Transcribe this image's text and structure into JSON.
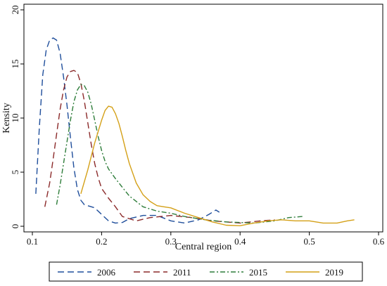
{
  "chart_data": {
    "type": "line",
    "xlabel": "Central region",
    "ylabel": "Kensity",
    "xlim": [
      0.1,
      0.6
    ],
    "ylim": [
      0,
      20
    ],
    "xticks": [
      0.1,
      0.2,
      0.3,
      0.4,
      0.5,
      0.6
    ],
    "xtick_labels": [
      "0.1",
      "0.2",
      "0.3",
      "0.4",
      "0.5",
      "0.6"
    ],
    "yticks": [
      0,
      5,
      10,
      15,
      20
    ],
    "ytick_labels": [
      "0",
      "5",
      "10",
      "15",
      "20"
    ],
    "grid": false,
    "legend": "bottom",
    "series": [
      {
        "name": "2006",
        "color": "#1f4e9b",
        "dash": "long-dash",
        "x": [
          0.105,
          0.11,
          0.115,
          0.12,
          0.125,
          0.13,
          0.135,
          0.14,
          0.145,
          0.15,
          0.155,
          0.16,
          0.165,
          0.17,
          0.175,
          0.18,
          0.19,
          0.2,
          0.21,
          0.22,
          0.23,
          0.24,
          0.26,
          0.28,
          0.3,
          0.32,
          0.34,
          0.355,
          0.365,
          0.37
        ],
        "y": [
          3.0,
          9.0,
          14.0,
          16.3,
          17.2,
          17.4,
          17.2,
          16.0,
          13.8,
          11.2,
          8.2,
          5.4,
          3.4,
          2.4,
          2.0,
          1.9,
          1.7,
          1.1,
          0.5,
          0.3,
          0.35,
          0.7,
          1.0,
          1.0,
          0.5,
          0.3,
          0.6,
          1.1,
          1.5,
          1.3
        ]
      },
      {
        "name": "2011",
        "color": "#8b2a2a",
        "dash": "long-dash",
        "x": [
          0.118,
          0.125,
          0.13,
          0.135,
          0.14,
          0.145,
          0.15,
          0.155,
          0.16,
          0.165,
          0.17,
          0.175,
          0.18,
          0.185,
          0.19,
          0.195,
          0.2,
          0.21,
          0.22,
          0.23,
          0.25,
          0.27,
          0.3,
          0.33,
          0.36,
          0.4,
          0.43,
          0.45
        ],
        "y": [
          1.8,
          4.0,
          6.2,
          8.5,
          10.8,
          12.6,
          13.8,
          14.3,
          14.4,
          14.2,
          13.2,
          11.6,
          9.6,
          7.6,
          5.8,
          4.5,
          3.5,
          2.6,
          1.8,
          0.9,
          0.5,
          0.8,
          1.0,
          0.8,
          0.5,
          0.3,
          0.5,
          0.6
        ]
      },
      {
        "name": "2015",
        "color": "#2e7d3a",
        "dash": "dash-dot",
        "x": [
          0.135,
          0.14,
          0.145,
          0.15,
          0.155,
          0.16,
          0.165,
          0.17,
          0.175,
          0.18,
          0.185,
          0.19,
          0.195,
          0.2,
          0.205,
          0.21,
          0.22,
          0.23,
          0.24,
          0.26,
          0.28,
          0.3,
          0.32,
          0.35,
          0.38,
          0.42,
          0.45,
          0.47,
          0.49
        ],
        "y": [
          2.0,
          3.8,
          5.8,
          7.8,
          9.8,
          11.5,
          12.6,
          13.1,
          13.0,
          12.4,
          11.3,
          9.8,
          8.3,
          7.0,
          6.0,
          5.3,
          4.4,
          3.6,
          2.8,
          1.8,
          1.4,
          1.2,
          0.9,
          0.6,
          0.4,
          0.3,
          0.5,
          0.8,
          0.9
        ]
      },
      {
        "name": "2019",
        "color": "#d4a017",
        "dash": "solid",
        "x": [
          0.17,
          0.18,
          0.19,
          0.2,
          0.205,
          0.21,
          0.215,
          0.22,
          0.225,
          0.23,
          0.235,
          0.24,
          0.25,
          0.26,
          0.27,
          0.28,
          0.29,
          0.3,
          0.32,
          0.34,
          0.36,
          0.38,
          0.4,
          0.42,
          0.44,
          0.46,
          0.48,
          0.5,
          0.52,
          0.54,
          0.555,
          0.565
        ],
        "y": [
          3.0,
          5.2,
          7.7,
          9.8,
          10.7,
          11.1,
          11.0,
          10.4,
          9.5,
          8.3,
          7.0,
          5.8,
          4.0,
          2.9,
          2.3,
          1.9,
          1.8,
          1.7,
          1.2,
          0.8,
          0.4,
          0.1,
          0.05,
          0.3,
          0.5,
          0.6,
          0.5,
          0.5,
          0.3,
          0.3,
          0.5,
          0.6
        ]
      }
    ]
  }
}
